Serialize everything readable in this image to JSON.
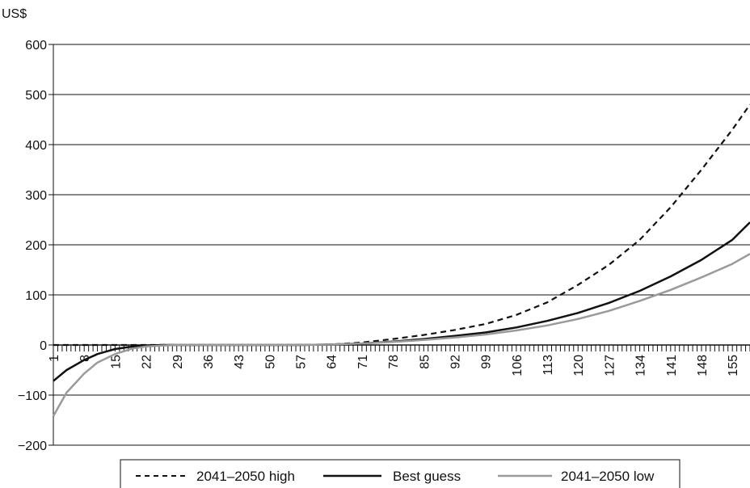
{
  "chart_data": {
    "type": "line",
    "title": "",
    "ylabel": "US$",
    "xlabel": "",
    "ylim": [
      -200,
      600
    ],
    "yticks": [
      600,
      500,
      400,
      300,
      200,
      100,
      0,
      -100,
      -200
    ],
    "ytick_labels": [
      "600",
      "500",
      "400",
      "300",
      "200",
      "100",
      "0",
      "−100",
      "−200"
    ],
    "xlim": [
      1,
      159
    ],
    "xticks": [
      1,
      8,
      15,
      22,
      29,
      36,
      43,
      50,
      57,
      64,
      71,
      78,
      85,
      92,
      99,
      106,
      113,
      120,
      127,
      134,
      141,
      148,
      155
    ],
    "grid": "horizontal",
    "legend_position": "bottom",
    "series": [
      {
        "name": "2041–2050 high",
        "style": "dashed",
        "color": "#111111",
        "x": [
          1,
          8,
          15,
          22,
          29,
          36,
          43,
          50,
          57,
          64,
          71,
          78,
          85,
          92,
          99,
          106,
          113,
          120,
          127,
          134,
          141,
          148,
          155,
          159
        ],
        "y": [
          0,
          0,
          0,
          0,
          0,
          0,
          0,
          0,
          0,
          1,
          5,
          12,
          20,
          30,
          42,
          60,
          85,
          120,
          160,
          210,
          275,
          350,
          430,
          480
        ]
      },
      {
        "name": "Best guess",
        "style": "solid",
        "color": "#111111",
        "x": [
          1,
          4,
          8,
          11,
          15,
          19,
          22,
          26,
          29,
          36,
          43,
          50,
          57,
          64,
          71,
          78,
          85,
          92,
          99,
          106,
          113,
          120,
          127,
          134,
          141,
          148,
          155,
          159
        ],
        "y": [
          -72,
          -50,
          -30,
          -18,
          -8,
          -3,
          -1,
          0,
          0,
          0,
          0,
          0,
          0,
          1,
          3,
          7,
          12,
          18,
          25,
          35,
          48,
          64,
          84,
          108,
          137,
          170,
          210,
          245
        ]
      },
      {
        "name": "2041–2050 low",
        "style": "solid",
        "color": "#9a9a9a",
        "x": [
          1,
          4,
          8,
          11,
          15,
          19,
          22,
          26,
          29,
          36,
          43,
          50,
          57,
          64,
          71,
          78,
          85,
          92,
          99,
          106,
          113,
          120,
          127,
          134,
          141,
          148,
          155,
          159
        ],
        "y": [
          -142,
          -95,
          -57,
          -35,
          -18,
          -7,
          -3,
          -1,
          0,
          0,
          0,
          0,
          0,
          1,
          3,
          6,
          10,
          15,
          21,
          29,
          39,
          52,
          68,
          88,
          110,
          135,
          162,
          182
        ]
      }
    ]
  }
}
